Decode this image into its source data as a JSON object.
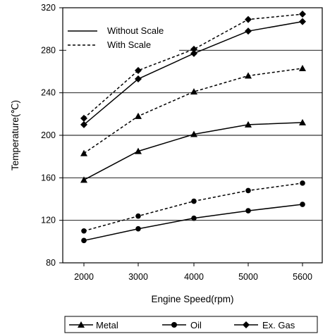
{
  "chart_data": {
    "type": "line",
    "xlabel": "Engine Speed(rpm)",
    "ylabel": "Temperature(℃)",
    "ylim": [
      80,
      320
    ],
    "yticks": [
      "80",
      "120",
      "160",
      "200",
      "240",
      "280",
      "320"
    ],
    "categories": [
      "2000",
      "3000",
      "4000",
      "5000",
      "5600"
    ],
    "grid": "horizontal",
    "line_styles": [
      {
        "label": "Without Scale",
        "dash": "solid"
      },
      {
        "label": "With Scale",
        "dash": "dashed"
      }
    ],
    "series": [
      {
        "name": "Metal",
        "marker": "triangle",
        "dash": "solid",
        "values": [
          158,
          185,
          201,
          210,
          212
        ]
      },
      {
        "name": "Metal",
        "marker": "triangle",
        "dash": "dashed",
        "values": [
          183,
          218,
          241,
          256,
          263
        ]
      },
      {
        "name": "Oil",
        "marker": "circle",
        "dash": "solid",
        "values": [
          101,
          112,
          122,
          129,
          135
        ]
      },
      {
        "name": "Oil",
        "marker": "circle",
        "dash": "dashed",
        "values": [
          110,
          124,
          138,
          148,
          155
        ]
      },
      {
        "name": "Ex. Gas",
        "marker": "diamond",
        "dash": "solid",
        "values": [
          210,
          253,
          277,
          298,
          307
        ]
      },
      {
        "name": "Ex. Gas",
        "marker": "diamond",
        "dash": "dashed",
        "values": [
          216,
          261,
          281,
          309,
          314
        ]
      }
    ],
    "legend": [
      {
        "label": "Metal",
        "marker": "triangle"
      },
      {
        "label": "Oil",
        "marker": "circle"
      },
      {
        "label": "Ex. Gas",
        "marker": "diamond"
      }
    ],
    "legend_placement": "bottom"
  }
}
